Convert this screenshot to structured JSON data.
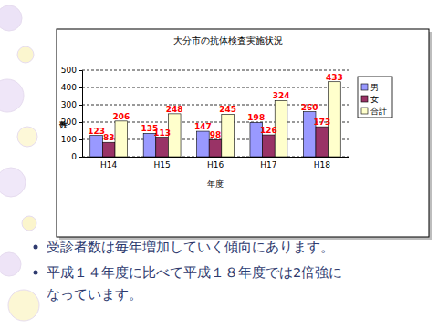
{
  "chart_data": {
    "type": "bar",
    "title": "大分市の抗体検査実施状況",
    "xlabel": "年度",
    "ylabel": "件数",
    "categories": [
      "H14",
      "H15",
      "H16",
      "H17",
      "H18"
    ],
    "series": [
      {
        "name": "男",
        "color": "#9999ff",
        "values": [
          123,
          135,
          147,
          198,
          260
        ]
      },
      {
        "name": "女",
        "color": "#993366",
        "values": [
          83,
          113,
          98,
          126,
          173
        ]
      },
      {
        "name": "合計",
        "color": "#ffffcc",
        "values": [
          206,
          248,
          245,
          324,
          433
        ]
      }
    ],
    "ylim": [
      0,
      500
    ],
    "yticks": [
      0,
      100,
      200,
      300,
      400,
      500
    ],
    "grid": true,
    "legend": "right",
    "data_labels": true
  },
  "bullets": [
    [
      "受診者数は毎年増加していく傾向にあります。"
    ],
    [
      "平成１４年度に比べて平成１８年度では2倍強に",
      "なっています。"
    ]
  ]
}
